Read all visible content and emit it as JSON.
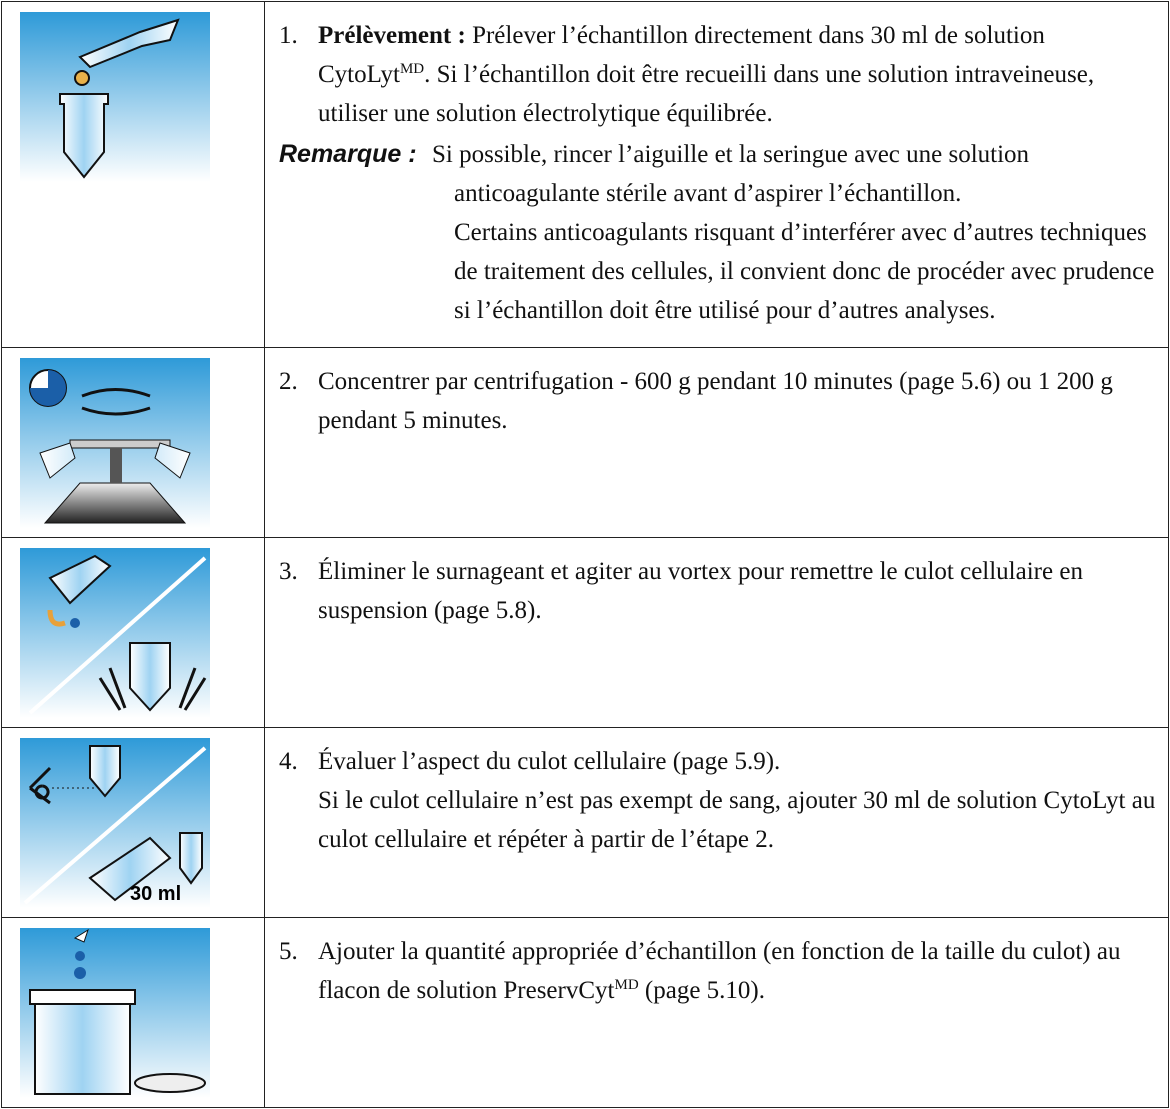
{
  "steps": [
    {
      "number": "1.",
      "title": "Prélèvement :",
      "text": [
        "Prélever l’échantillon directement dans 30 ml de solution CytoLyt",
        "MD",
        ". Si l’échantillon doit être recueilli dans une solution intraveineuse, utiliser une solution électrolytique équilibrée."
      ],
      "note": {
        "label": "Remarque :",
        "paragraphs": [
          "Si possible, rincer l’aiguille et la seringue avec une solution anticoagulante stérile avant d’aspirer l’échantillon.",
          "Certains anticoagulants risquant d’interférer avec d’autres techniques de traitement des cellules, il convient donc de procéder avec prudence si l’échantillon doit être utilisé pour d’autres analyses."
        ]
      }
    },
    {
      "number": "2.",
      "paragraphs": [
        "Concentrer par centrifugation - 600 g pendant 10 minutes (page 5.6) ou 1 200 g pendant 5 minutes."
      ]
    },
    {
      "number": "3.",
      "paragraphs": [
        "Éliminer le surnageant et agiter au vortex pour remettre le culot cellulaire en suspension (page 5.8)."
      ]
    },
    {
      "number": "4.",
      "paragraphs": [
        "Évaluer l’aspect du culot cellulaire (page 5.9).",
        "Si le culot cellulaire n’est pas exempt de sang, ajouter 30 ml de solution CytoLyt au culot cellulaire et répéter à partir de l’étape 2."
      ],
      "icon_label": "30 ml"
    },
    {
      "number": "5.",
      "text": [
        "Ajouter la quantité appropriée d’échantillon (en fonction de la taille du culot) au flacon de solution PreservCyt",
        "MD",
        " (page 5.10)."
      ]
    }
  ]
}
